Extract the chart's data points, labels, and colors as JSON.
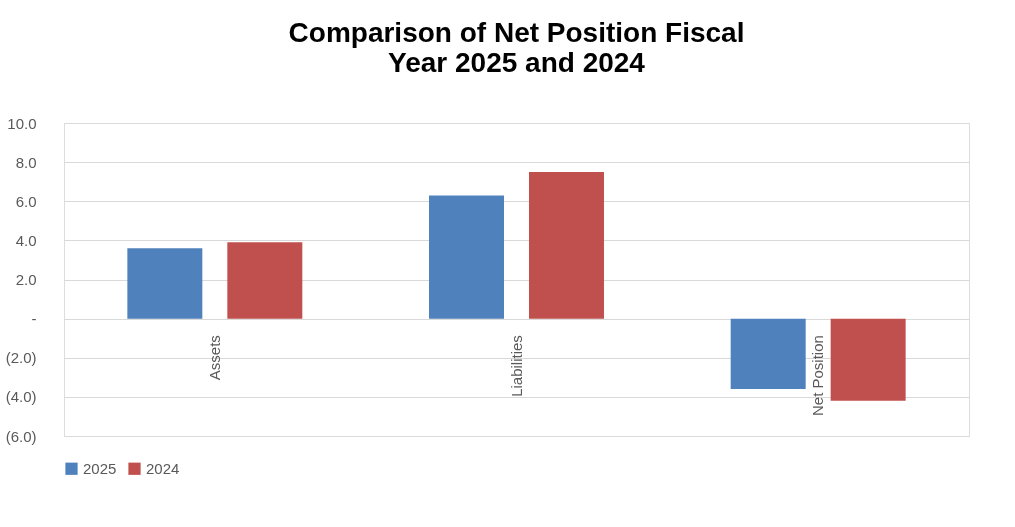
{
  "chart_data": {
    "type": "bar",
    "title": "Comparison of Net Position Fiscal\nYear 2025 and 2024",
    "categories": [
      "Assets",
      "Liabilities",
      "Net Position"
    ],
    "series": [
      {
        "name": "2025",
        "color": "#4f81bd",
        "values": [
          3.6,
          6.3,
          -3.6
        ]
      },
      {
        "name": "2024",
        "color": "#c0504d",
        "values": [
          3.9,
          7.5,
          -4.2
        ]
      }
    ],
    "ylim": [
      -6,
      10
    ],
    "yticks": [
      {
        "value": 10,
        "label": "10.0"
      },
      {
        "value": 8,
        "label": "8.0"
      },
      {
        "value": 6,
        "label": "6.0"
      },
      {
        "value": 4,
        "label": "4.0"
      },
      {
        "value": 2,
        "label": "2.0"
      },
      {
        "value": 0,
        "label": "-"
      },
      {
        "value": -2,
        "label": "(2.0)"
      },
      {
        "value": -4,
        "label": "(4.0)"
      },
      {
        "value": -6,
        "label": "(6.0)"
      }
    ],
    "grid": "y",
    "legend": "bottom"
  }
}
